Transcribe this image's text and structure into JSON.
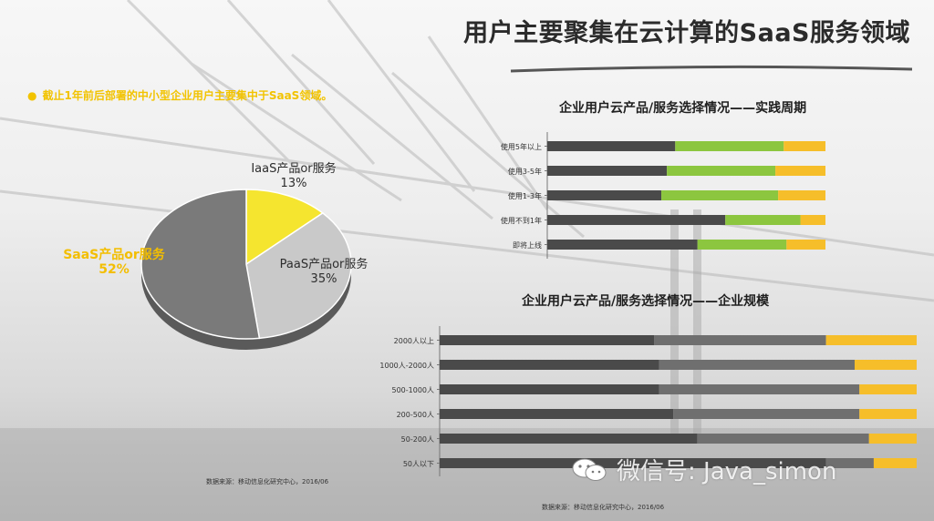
{
  "title": "用户主要聚集在云计算的SaaS服务领域",
  "subtitle": "截止1年前后部署的中小型企业用户主要集中于SaaS领域。",
  "colors": {
    "dark": "#4a4a4a",
    "green": "#8cc63f",
    "gold": "#f6be2a",
    "mid_gray": "#6f6f6f",
    "pie_saas": "#7a7a7a",
    "pie_paas": "#c9c9c9",
    "pie_iaas": "#f5e52f"
  },
  "chart_data": [
    {
      "type": "pie",
      "title": "",
      "slices": [
        {
          "name": "IaaS产品or服务",
          "pct_label": "13%",
          "value": 13
        },
        {
          "name": "PaaS产品or服务",
          "pct_label": "35%",
          "value": 35
        },
        {
          "name": "SaaS产品or服务",
          "pct_label": "52%",
          "value": 52
        }
      ]
    },
    {
      "type": "bar",
      "orientation": "horizontal",
      "stacked": true,
      "title": "企业用户云产品/服务选择情况——实践周期",
      "categories": [
        "使用5年以上",
        "使用3-5年",
        "使用1-3年",
        "使用不到1年",
        "即将上线"
      ],
      "series": [
        {
          "values": [
            46,
            43,
            41,
            64,
            54
          ]
        },
        {
          "values": [
            39,
            39,
            42,
            27,
            32
          ]
        },
        {
          "values": [
            15,
            18,
            17,
            9,
            14
          ]
        }
      ],
      "xlim": [
        0,
        100
      ]
    },
    {
      "type": "bar",
      "orientation": "horizontal",
      "stacked": true,
      "title": "企业用户云产品/服务选择情况——企业规模",
      "categories": [
        "2000人以上",
        "1000人-2000人",
        "500-1000人",
        "200-500人",
        "50-200人",
        "50人以下"
      ],
      "series": [
        {
          "values": [
            45,
            46,
            46,
            49,
            54,
            81
          ]
        },
        {
          "values": [
            36,
            41,
            42,
            39,
            36,
            10
          ]
        },
        {
          "values": [
            19,
            13,
            12,
            12,
            10,
            9
          ]
        }
      ],
      "xlim": [
        0,
        100
      ]
    }
  ],
  "sources": {
    "left": "数据来源：移动信息化研究中心，2016/06",
    "right": "数据来源：移动信息化研究中心，2016/06"
  },
  "watermark": "微信号: Java_simon"
}
